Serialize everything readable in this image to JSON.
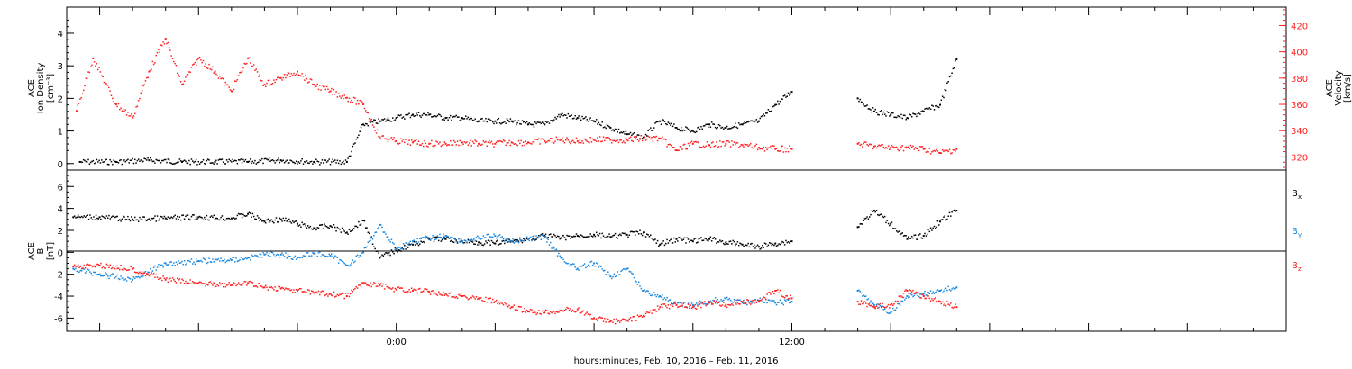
{
  "chart_data": [
    {
      "type": "scatter",
      "panel": "top",
      "ylabel_left": [
        "ACE",
        "Ion Density",
        "[cm⁻³]"
      ],
      "ylabel_right": [
        "ACE",
        "Velocity",
        "[km/s]"
      ],
      "left_yticks": [
        "0",
        "1",
        "2",
        "3",
        "4"
      ],
      "right_yticks": [
        "320",
        "340",
        "360",
        "380",
        "400",
        "420"
      ],
      "ylim_left": [
        -0.2,
        4.8
      ],
      "ylim_right": [
        310,
        434
      ],
      "x_unit": "hours since 0:00 Feb 10, 2016",
      "xlim": [
        -10,
        27
      ],
      "series": [
        {
          "color": "#000000",
          "axis": "left",
          "x": [
            -9.6,
            -8.5,
            -7.5,
            -6.5,
            -5.5,
            -4.5,
            -3.5,
            -2.5,
            -1.5,
            -1.0,
            -0.5,
            0,
            0.5,
            1,
            1.5,
            2,
            2.5,
            3,
            3.5,
            4,
            4.5,
            5,
            5.5,
            6,
            6.5,
            7,
            7.5,
            8,
            8.5,
            9,
            9.5,
            10,
            10.5,
            11,
            11.5,
            12,
            14,
            14.5,
            15,
            15.5,
            16,
            16.5,
            17
          ],
          "y": [
            0.05,
            0.05,
            0.1,
            0.05,
            0.05,
            0.05,
            0.1,
            0.05,
            0.05,
            1.2,
            1.3,
            1.4,
            1.5,
            1.5,
            1.4,
            1.4,
            1.3,
            1.3,
            1.3,
            1.2,
            1.2,
            1.5,
            1.4,
            1.3,
            1.1,
            0.9,
            0.8,
            1.3,
            1.1,
            1.0,
            1.2,
            1.1,
            1.2,
            1.3,
            1.8,
            2.2,
            2.0,
            1.6,
            1.5,
            1.4,
            1.6,
            1.8,
            3.2
          ]
        },
        {
          "color": "#ff2020",
          "axis": "right",
          "x": [
            -9.7,
            -9.2,
            -8.5,
            -8.0,
            -7.5,
            -7.0,
            -6.5,
            -6.0,
            -5.5,
            -5.0,
            -4.5,
            -4.0,
            -3.5,
            -3.0,
            -2.5,
            -2.0,
            -1.5,
            -1.0,
            -0.5,
            0,
            0.5,
            1,
            1.5,
            2,
            2.5,
            3,
            3.5,
            4,
            4.5,
            5,
            5.5,
            6,
            6.5,
            7,
            7.5,
            8,
            8.5,
            9,
            9.5,
            10,
            10.5,
            11,
            11.5,
            12,
            14,
            14.5,
            15,
            15.5,
            16,
            16.5,
            17
          ],
          "y": [
            355,
            395,
            360,
            350,
            385,
            410,
            375,
            395,
            385,
            370,
            395,
            375,
            380,
            385,
            375,
            370,
            365,
            360,
            335,
            332,
            331,
            330,
            330,
            331,
            330,
            330,
            331,
            331,
            332,
            333,
            332,
            333,
            333,
            333,
            334,
            334,
            325,
            330,
            329,
            330,
            329,
            327,
            326,
            326,
            330,
            328,
            327,
            327,
            326,
            323,
            326
          ]
        }
      ]
    },
    {
      "type": "scatter",
      "panel": "bottom",
      "ylabel_left": [
        "ACE",
        "B",
        "[nT]"
      ],
      "left_yticks": [
        "-6",
        "-4",
        "-2",
        "0",
        "2",
        "4",
        "6"
      ],
      "ylim": [
        -7.2,
        7.5
      ],
      "zero_line": true,
      "x_unit": "hours since 0:00 Feb 10, 2016",
      "xlim": [
        -10,
        27
      ],
      "series": [
        {
          "name": "Bx",
          "color": "#000000",
          "x": [
            -9.8,
            -9,
            -8,
            -7,
            -6,
            -5,
            -4.5,
            -4,
            -3.5,
            -3,
            -2.5,
            -2,
            -1.5,
            -1,
            -0.5,
            0,
            0.5,
            1,
            1.5,
            2,
            2.5,
            3,
            3.5,
            4,
            4.5,
            5,
            5.5,
            6,
            6.5,
            7,
            7.5,
            8,
            8.5,
            9,
            9.5,
            10,
            10.5,
            11,
            11.5,
            12,
            14,
            14.5,
            15,
            15.5,
            16,
            16.5,
            17
          ],
          "y": [
            3.2,
            3.2,
            3.0,
            3.1,
            3.2,
            3.1,
            3.5,
            2.8,
            3.0,
            2.6,
            2.2,
            2.4,
            1.8,
            2.9,
            -0.5,
            0.2,
            0.7,
            1.2,
            1.2,
            1.0,
            0.9,
            0.8,
            1.0,
            1.2,
            1.5,
            1.3,
            1.5,
            1.6,
            1.4,
            1.6,
            1.8,
            0.7,
            1.2,
            1.0,
            1.2,
            0.9,
            0.7,
            0.5,
            0.8,
            1.0,
            2.3,
            3.8,
            2.6,
            1.2,
            1.5,
            2.8,
            3.8
          ]
        },
        {
          "name": "By",
          "color": "#1a88e0",
          "x": [
            -9.8,
            -9,
            -8,
            -7,
            -6,
            -5,
            -4.5,
            -4,
            -3.5,
            -3,
            -2.5,
            -2,
            -1.5,
            -1,
            -0.5,
            0,
            0.5,
            1,
            1.5,
            2,
            2.5,
            3,
            3.5,
            4,
            4.5,
            5,
            5.5,
            6,
            6.5,
            7,
            7.5,
            8,
            8.5,
            9,
            9.5,
            10,
            10.5,
            11,
            11.5,
            12,
            14,
            14.5,
            15,
            15.5,
            16,
            16.5,
            17
          ],
          "y": [
            -1.5,
            -2.0,
            -2.5,
            -1.0,
            -0.8,
            -0.7,
            -0.5,
            -0.2,
            -0.2,
            -0.5,
            -0.1,
            -0.3,
            -1.2,
            0.0,
            2.5,
            0.3,
            1.0,
            1.3,
            1.5,
            1.0,
            1.3,
            1.5,
            1.0,
            1.2,
            1.4,
            -0.5,
            -1.5,
            -1.0,
            -2.2,
            -1.5,
            -3.5,
            -4.0,
            -4.8,
            -4.8,
            -4.5,
            -4.2,
            -4.6,
            -4.4,
            -4.6,
            -4.5,
            -3.5,
            -4.8,
            -5.5,
            -4.0,
            -3.8,
            -3.5,
            -3.2
          ]
        },
        {
          "name": "Bz",
          "color": "#ff2020",
          "x": [
            -9.8,
            -9,
            -8,
            -7,
            -6,
            -5,
            -4.5,
            -4,
            -3.5,
            -3,
            -2.5,
            -2,
            -1.5,
            -1,
            -0.5,
            0,
            0.5,
            1,
            1.5,
            2,
            2.5,
            3,
            3.5,
            4,
            4.5,
            5,
            5.5,
            6,
            6.5,
            7,
            7.5,
            8,
            8.5,
            9,
            9.5,
            10,
            10.5,
            11,
            11.5,
            12,
            14,
            14.5,
            15,
            15.5,
            16,
            16.5,
            17
          ],
          "y": [
            -1.3,
            -1.2,
            -1.5,
            -2.5,
            -2.8,
            -3.0,
            -2.8,
            -3.2,
            -3.3,
            -3.5,
            -3.7,
            -3.8,
            -4.0,
            -2.8,
            -3.0,
            -3.4,
            -3.5,
            -3.6,
            -3.8,
            -4.0,
            -4.2,
            -4.5,
            -5.0,
            -5.4,
            -5.5,
            -5.3,
            -5.2,
            -6.0,
            -6.3,
            -6.2,
            -5.8,
            -5.0,
            -4.8,
            -5.0,
            -4.6,
            -4.8,
            -4.5,
            -4.5,
            -3.5,
            -4.2,
            -4.5,
            -5.0,
            -4.8,
            -3.5,
            -4.0,
            -4.5,
            -5.0
          ]
        }
      ],
      "legend": [
        {
          "label": "B",
          "sub": "x",
          "color": "#000000"
        },
        {
          "label": "B",
          "sub": "y",
          "color": "#1a88e0"
        },
        {
          "label": "B",
          "sub": "z",
          "color": "#ff2020"
        }
      ]
    }
  ],
  "x_axis": {
    "tick_labels": [
      {
        "hour": 0,
        "label": "0:00"
      },
      {
        "hour": 12,
        "label": "12:00"
      }
    ],
    "xlabel": "hours:minutes, Feb. 10, 2016 – Feb. 11, 2016"
  }
}
